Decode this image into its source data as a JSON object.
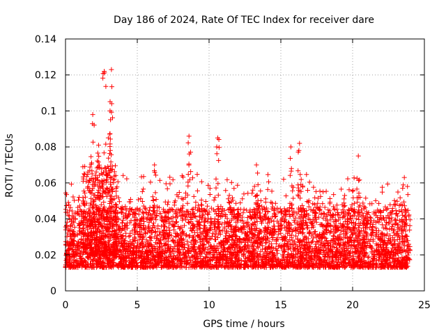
{
  "chart_data": {
    "type": "scatter",
    "title": "Day 186 of 2024, Rate Of TEC Index for receiver dare",
    "xlabel": "GPS time / hours",
    "ylabel": "ROTI / TECUs",
    "xlim": [
      0,
      25
    ],
    "ylim": [
      0,
      0.14
    ],
    "xticks": [
      0,
      5,
      10,
      15,
      20,
      25
    ],
    "xtick_labels": [
      "0",
      "5",
      "10",
      "15",
      "20",
      "25"
    ],
    "yticks": [
      0,
      0.02,
      0.04,
      0.06,
      0.08,
      0.1,
      0.12,
      0.14
    ],
    "ytick_labels": [
      "0",
      "0.02",
      "0.04",
      "0.06",
      "0.08",
      "0.1",
      "0.12",
      "0.14"
    ],
    "grid": true,
    "marker": "+",
    "series": [
      {
        "name": "ROTI",
        "color": "#ff0000",
        "x_range": [
          0,
          24
        ],
        "typical_range": [
          0.005,
          0.045
        ],
        "peaks": [
          {
            "x": 1.9,
            "y": 0.098
          },
          {
            "x": 2.7,
            "y": 0.122
          },
          {
            "x": 3.2,
            "y": 0.123
          },
          {
            "x": 3.1,
            "y": 0.1
          },
          {
            "x": 2.3,
            "y": 0.081
          },
          {
            "x": 6.2,
            "y": 0.07
          },
          {
            "x": 8.6,
            "y": 0.086
          },
          {
            "x": 10.6,
            "y": 0.085
          },
          {
            "x": 13.3,
            "y": 0.07
          },
          {
            "x": 15.7,
            "y": 0.08
          },
          {
            "x": 16.3,
            "y": 0.082
          },
          {
            "x": 20.4,
            "y": 0.075
          },
          {
            "x": 23.6,
            "y": 0.063
          }
        ]
      }
    ]
  }
}
